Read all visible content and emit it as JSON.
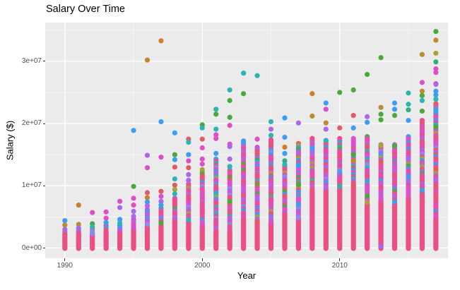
{
  "title": "Salary Over Time",
  "panel": {
    "bg": "#EBEBEB",
    "grid_major": "#FFFFFF",
    "grid_minor_opacity": 0.55
  },
  "chart_data": {
    "type": "scatter",
    "title": "Salary Over Time",
    "xlabel": "Year",
    "ylabel": "Salary ($)",
    "legend": "none",
    "grid": "gray panel, white major gridlines, faint white minor gridlines",
    "x_tick_labels": [
      "1990",
      "2000",
      "2010"
    ],
    "x_tick_years": [
      1990,
      2000,
      2010
    ],
    "x_minor_years": [
      1995,
      2005,
      2015
    ],
    "y_tick_labels": [
      "0e+00",
      "1e+07",
      "2e+07",
      "3e+07"
    ],
    "y_tick_values_e6": [
      0,
      10,
      20,
      30
    ],
    "y_minor_values_e6": [
      5,
      15,
      25,
      35
    ],
    "xlim_years": [
      1988.6,
      2017.9
    ],
    "ylim_e6": [
      -1.7,
      36.5
    ],
    "salary_unit": "values in millions of $ (axis shown in scientific notation)",
    "description": "Dense vertical columns of points for every year 1990-2017; each column packed from $0 up, dominated by pink with mixed magenta/purple/blue hues, colored outlier points above",
    "palette": {
      "pink": "#EC4E86",
      "red": "#E25B64",
      "orange": "#CF7E2E",
      "gold": "#BB8B33",
      "olive": "#A6A437",
      "green": "#4BA93C",
      "seagreen": "#2FAE7E",
      "teal": "#2FB3B5",
      "blue": "#3E9DF3",
      "periwinkle": "#8A8BEE",
      "purple": "#AA68E8",
      "magenta": "#DD4FC8"
    },
    "mix_cycle": [
      "magenta",
      "pink",
      "magenta",
      "purple",
      "pink",
      "blue",
      "magenta",
      "pink",
      "periwinkle",
      "red",
      "magenta",
      "pink",
      "teal",
      "purple",
      "pink",
      "magenta",
      "blue",
      "pink",
      "green",
      "magenta",
      "pink",
      "purple",
      "magenta",
      "pink",
      "olive",
      "blue",
      "magenta",
      "pink",
      "red",
      "purple"
    ],
    "columns": [
      {
        "year": 1990,
        "dense_mix_top_e6": 2.6,
        "solid_pink_top_e6": 2.2,
        "outliers": [
          {
            "v": 4.4,
            "c": "blue"
          },
          {
            "v": 3.7,
            "c": "gold"
          },
          {
            "v": 3.0,
            "c": "purple"
          }
        ]
      },
      {
        "year": 1991,
        "dense_mix_top_e6": 3.0,
        "solid_pink_top_e6": 2.3,
        "outliers": [
          {
            "v": 6.9,
            "c": "orange"
          },
          {
            "v": 3.8,
            "c": "gold"
          },
          {
            "v": 3.2,
            "c": "purple"
          }
        ]
      },
      {
        "year": 1992,
        "dense_mix_top_e6": 3.0,
        "solid_pink_top_e6": 2.3,
        "outliers": [
          {
            "v": 5.7,
            "c": "magenta"
          },
          {
            "v": 3.9,
            "c": "green"
          },
          {
            "v": 3.4,
            "c": "teal"
          }
        ]
      },
      {
        "year": 1993,
        "dense_mix_top_e6": 3.6,
        "solid_pink_top_e6": 2.6,
        "outliers": [
          {
            "v": 5.8,
            "c": "magenta"
          },
          {
            "v": 4.8,
            "c": "magenta"
          },
          {
            "v": 4.1,
            "c": "blue"
          }
        ]
      },
      {
        "year": 1994,
        "dense_mix_top_e6": 4.0,
        "solid_pink_top_e6": 2.9,
        "outliers": [
          {
            "v": 7.5,
            "c": "magenta"
          },
          {
            "v": 6.5,
            "c": "purple"
          },
          {
            "v": 4.6,
            "c": "blue"
          }
        ]
      },
      {
        "year": 1995,
        "dense_mix_top_e6": 4.6,
        "solid_pink_top_e6": 3.1,
        "outliers": [
          {
            "v": 18.9,
            "c": "blue"
          },
          {
            "v": 9.9,
            "c": "green"
          },
          {
            "v": 8.0,
            "c": "magenta"
          },
          {
            "v": 6.9,
            "c": "magenta"
          },
          {
            "v": 5.9,
            "c": "purple"
          },
          {
            "v": 5.1,
            "c": "purple"
          }
        ]
      },
      {
        "year": 1996,
        "dense_mix_top_e6": 6.2,
        "solid_pink_top_e6": 3.5,
        "outliers": [
          {
            "v": 30.2,
            "c": "orange"
          },
          {
            "v": 14.9,
            "c": "purple"
          },
          {
            "v": 12.9,
            "c": "magenta"
          },
          {
            "v": 8.9,
            "c": "red"
          },
          {
            "v": 8.1,
            "c": "orange"
          },
          {
            "v": 7.4,
            "c": "blue"
          },
          {
            "v": 6.8,
            "c": "purple"
          }
        ]
      },
      {
        "year": 1997,
        "dense_mix_top_e6": 6.4,
        "solid_pink_top_e6": 3.7,
        "outliers": [
          {
            "v": 33.3,
            "c": "orange"
          },
          {
            "v": 20.3,
            "c": "blue"
          },
          {
            "v": 14.6,
            "c": "magenta"
          },
          {
            "v": 9.1,
            "c": "red"
          },
          {
            "v": 8.3,
            "c": "magenta"
          },
          {
            "v": 7.5,
            "c": "purple"
          },
          {
            "v": 6.9,
            "c": "blue"
          }
        ]
      },
      {
        "year": 1998,
        "dense_mix_top_e6": 8.0,
        "solid_pink_top_e6": 4.8,
        "outliers": [
          {
            "v": 18.5,
            "c": "blue"
          },
          {
            "v": 15.0,
            "c": "green"
          },
          {
            "v": 14.2,
            "c": "blue"
          },
          {
            "v": 13.0,
            "c": "red"
          },
          {
            "v": 11.1,
            "c": "teal"
          },
          {
            "v": 10.1,
            "c": "red"
          },
          {
            "v": 9.4,
            "c": "olive"
          },
          {
            "v": 8.7,
            "c": "teal"
          }
        ]
      },
      {
        "year": 1999,
        "dense_mix_top_e6": 10.3,
        "solid_pink_top_e6": 4.3,
        "outliers": [
          {
            "v": 17.5,
            "c": "red"
          },
          {
            "v": 17.0,
            "c": "teal"
          },
          {
            "v": 15.0,
            "c": "blue"
          },
          {
            "v": 14.0,
            "c": "magenta"
          },
          {
            "v": 12.9,
            "c": "red"
          },
          {
            "v": 11.8,
            "c": "purple"
          },
          {
            "v": 10.9,
            "c": "purple"
          }
        ]
      },
      {
        "year": 2000,
        "dense_mix_top_e6": 12.6,
        "solid_pink_top_e6": 3.7,
        "outliers": [
          {
            "v": 19.8,
            "c": "green"
          },
          {
            "v": 19.3,
            "c": "teal"
          },
          {
            "v": 17.5,
            "c": "red"
          },
          {
            "v": 16.1,
            "c": "magenta"
          },
          {
            "v": 14.3,
            "c": "magenta"
          },
          {
            "v": 13.5,
            "c": "magenta"
          }
        ]
      },
      {
        "year": 2001,
        "dense_mix_top_e6": 14.3,
        "solid_pink_top_e6": 2.6,
        "outliers": [
          {
            "v": 22.3,
            "c": "teal"
          },
          {
            "v": 21.5,
            "c": "green"
          },
          {
            "v": 19.1,
            "c": "teal"
          },
          {
            "v": 18.2,
            "c": "magenta"
          },
          {
            "v": 17.6,
            "c": "magenta"
          },
          {
            "v": 15.2,
            "c": "blue"
          }
        ]
      },
      {
        "year": 2002,
        "dense_mix_top_e6": 12.6,
        "solid_pink_top_e6": 2.6,
        "outliers": [
          {
            "v": 25.4,
            "c": "teal"
          },
          {
            "v": 23.7,
            "c": "green"
          },
          {
            "v": 21.0,
            "c": "green"
          },
          {
            "v": 19.7,
            "c": "magenta"
          },
          {
            "v": 16.7,
            "c": "magenta"
          },
          {
            "v": 16.3,
            "c": "purple"
          },
          {
            "v": 14.3,
            "c": "purple"
          },
          {
            "v": 13.1,
            "c": "teal"
          }
        ]
      },
      {
        "year": 2003,
        "dense_mix_top_e6": 16.9,
        "solid_pink_top_e6": 4.6,
        "outliers": [
          {
            "v": 28.1,
            "c": "teal"
          },
          {
            "v": 24.8,
            "c": "green"
          },
          {
            "v": 17.2,
            "c": "blue"
          }
        ]
      },
      {
        "year": 2004,
        "dense_mix_top_e6": 16.2,
        "solid_pink_top_e6": 4.3,
        "outliers": [
          {
            "v": 27.7,
            "c": "teal"
          },
          {
            "v": 17.5,
            "c": "magenta"
          }
        ]
      },
      {
        "year": 2005,
        "dense_mix_top_e6": 17.4,
        "solid_pink_top_e6": 4.1,
        "outliers": [
          {
            "v": 20.3,
            "c": "teal"
          },
          {
            "v": 19.1,
            "c": "purple"
          },
          {
            "v": 18.1,
            "c": "teal"
          }
        ]
      },
      {
        "year": 2006,
        "dense_mix_top_e6": 13.1,
        "solid_pink_top_e6": 5.9,
        "outliers": [
          {
            "v": 20.9,
            "c": "blue"
          },
          {
            "v": 17.8,
            "c": "blue"
          },
          {
            "v": 16.2,
            "c": "orange"
          },
          {
            "v": 15.2,
            "c": "blue"
          },
          {
            "v": 14.0,
            "c": "seagreen"
          },
          {
            "v": 13.4,
            "c": "teal"
          }
        ]
      },
      {
        "year": 2007,
        "dense_mix_top_e6": 16.8,
        "solid_pink_top_e6": 4.8,
        "outliers": [
          {
            "v": 20.1,
            "c": "purple"
          },
          {
            "v": 15.3,
            "c": "purple"
          },
          {
            "v": 13.3,
            "c": "blue"
          },
          {
            "v": 10.2,
            "c": "green"
          },
          {
            "v": 7.0,
            "c": "blue"
          }
        ]
      },
      {
        "year": 2008,
        "dense_mix_top_e6": 17.6,
        "solid_pink_top_e6": 9.1,
        "outliers": [
          {
            "v": 24.8,
            "c": "orange"
          },
          {
            "v": 21.2,
            "c": "gold"
          },
          {
            "v": 16.0,
            "c": "blue"
          }
        ]
      },
      {
        "year": 2009,
        "dense_mix_top_e6": 17.2,
        "solid_pink_top_e6": 9.4,
        "outliers": [
          {
            "v": 23.3,
            "c": "blue"
          },
          {
            "v": 22.3,
            "c": "magenta"
          },
          {
            "v": 20.1,
            "c": "gold"
          },
          {
            "v": 19.1,
            "c": "purple"
          },
          {
            "v": 17.3,
            "c": "teal"
          }
        ]
      },
      {
        "year": 2010,
        "dense_mix_top_e6": 17.6,
        "solid_pink_top_e6": 12.1,
        "outliers": [
          {
            "v": 25.0,
            "c": "green"
          },
          {
            "v": 19.3,
            "c": "red"
          },
          {
            "v": 11.5,
            "c": "magenta"
          },
          {
            "v": 9.9,
            "c": "teal"
          }
        ]
      },
      {
        "year": 2011,
        "dense_mix_top_e6": 17.6,
        "solid_pink_top_e6": 10.1,
        "outliers": [
          {
            "v": 25.4,
            "c": "green"
          },
          {
            "v": 21.3,
            "c": "red"
          },
          {
            "v": 19.3,
            "c": "blue"
          },
          {
            "v": 15.0,
            "c": "green"
          },
          {
            "v": 14.0,
            "c": "orange"
          }
        ]
      },
      {
        "year": 2012,
        "dense_mix_top_e6": 17.9,
        "solid_pink_top_e6": 7.1,
        "outliers": [
          {
            "v": 27.9,
            "c": "green"
          },
          {
            "v": 21.1,
            "c": "purple"
          },
          {
            "v": 20.2,
            "c": "blue"
          },
          {
            "v": 16.3,
            "c": "red"
          }
        ]
      },
      {
        "year": 2013,
        "dense_mix_top_e6": 16.6,
        "solid_pink_top_e6": 7.6,
        "outliers": [
          {
            "v": 30.6,
            "c": "green"
          },
          {
            "v": 22.6,
            "c": "gold"
          },
          {
            "v": 21.5,
            "c": "green"
          },
          {
            "v": 20.6,
            "c": "green"
          },
          {
            "v": 16.5,
            "c": "olive"
          },
          {
            "v": 0.3,
            "c": "purple"
          }
        ]
      },
      {
        "year": 2014,
        "dense_mix_top_e6": 16.6,
        "solid_pink_top_e6": 7.1,
        "outliers": [
          {
            "v": 23.3,
            "c": "blue"
          },
          {
            "v": 22.3,
            "c": "blue"
          },
          {
            "v": 21.3,
            "c": "green"
          },
          {
            "v": 16.4,
            "c": "green"
          }
        ]
      },
      {
        "year": 2015,
        "dense_mix_top_e6": 17.9,
        "solid_pink_top_e6": 8.1,
        "outliers": [
          {
            "v": 24.9,
            "c": "teal"
          },
          {
            "v": 23.1,
            "c": "teal"
          },
          {
            "v": 22.2,
            "c": "seagreen"
          },
          {
            "v": 20.5,
            "c": "blue"
          },
          {
            "v": 11.5,
            "c": "blue"
          }
        ]
      },
      {
        "year": 2016,
        "dense_mix_top_e6": 20.5,
        "solid_pink_top_e6": 9.1,
        "outliers": [
          {
            "v": 31.1,
            "c": "gold"
          },
          {
            "v": 26.6,
            "c": "magenta"
          },
          {
            "v": 25.2,
            "c": "gold"
          },
          {
            "v": 24.5,
            "c": "green"
          },
          {
            "v": 23.7,
            "c": "teal"
          },
          {
            "v": 22.0,
            "c": "green"
          }
        ]
      },
      {
        "year": 2017,
        "dense_mix_top_e6": 23.2,
        "solid_pink_top_e6": 5.0,
        "outliers": [
          {
            "v": 34.8,
            "c": "green"
          },
          {
            "v": 33.4,
            "c": "gold"
          },
          {
            "v": 31.3,
            "c": "olive"
          },
          {
            "v": 29.9,
            "c": "seagreen"
          },
          {
            "v": 28.8,
            "c": "magenta"
          },
          {
            "v": 28.2,
            "c": "magenta"
          },
          {
            "v": 26.4,
            "c": "pink"
          },
          {
            "v": 26.3,
            "c": "purple"
          },
          {
            "v": 25.2,
            "c": "blue"
          },
          {
            "v": 24.6,
            "c": "blue"
          },
          {
            "v": 23.9,
            "c": "teal"
          }
        ]
      }
    ]
  }
}
